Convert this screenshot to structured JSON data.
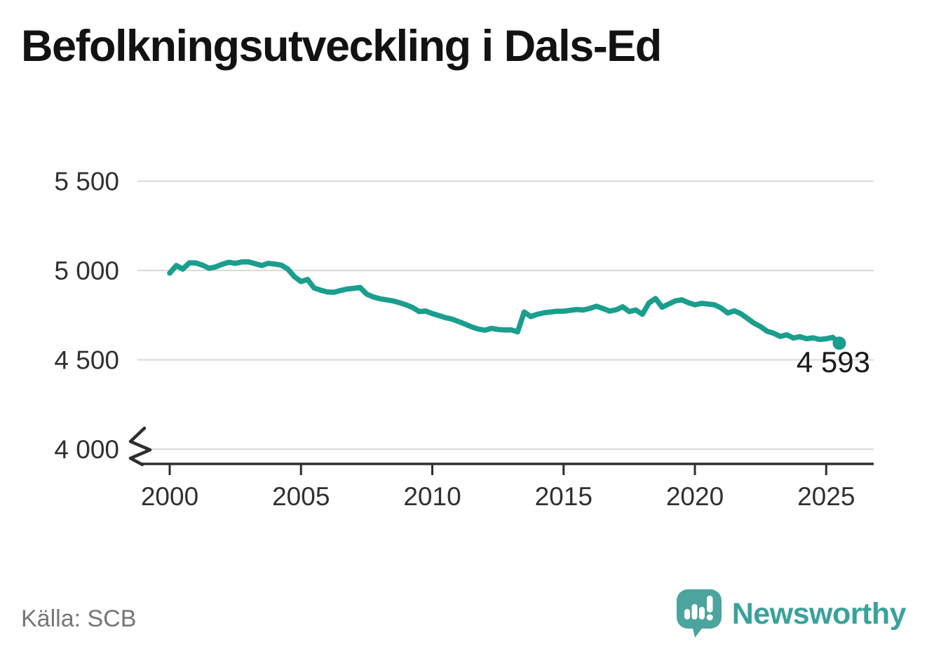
{
  "header": {
    "title": "Befolkningsutveckling i Dals-Ed"
  },
  "footer": {
    "source": "Källa: SCB",
    "brand": "Newsworthy"
  },
  "colors": {
    "line": "#1a9e8e",
    "grid": "#d9d9d9",
    "axis": "#2e2e2e",
    "tick_text": "#303030",
    "muted_text": "#767676",
    "logo_teal": "#4ba49d",
    "wordmark_teal": "#3aa29a"
  },
  "chart_data": {
    "type": "line",
    "title": "Befolkningsutveckling i Dals-Ed",
    "xlabel": "",
    "ylabel": "",
    "grid": "horizontal",
    "legend": "none",
    "y_axis_break": true,
    "ylim_displayed": [
      4000,
      5500
    ],
    "xlim": [
      1998.8,
      2026.9
    ],
    "x_ticks": [
      {
        "value": 2000,
        "label": "2000"
      },
      {
        "value": 2005,
        "label": "2005"
      },
      {
        "value": 2010,
        "label": "2010"
      },
      {
        "value": 2015,
        "label": "2015"
      },
      {
        "value": 2020,
        "label": "2020"
      },
      {
        "value": 2025,
        "label": "2025"
      }
    ],
    "y_ticks": [
      {
        "value": 5500,
        "label": "5 500"
      },
      {
        "value": 5000,
        "label": "5 000"
      },
      {
        "value": 4500,
        "label": "4 500"
      },
      {
        "value": 4000,
        "label": "4 000"
      }
    ],
    "line_color": "#1a9e8e",
    "last_value_label": "4 593",
    "last_point": [
      2025.5,
      4593
    ],
    "series": [
      {
        "name": "Befolkning",
        "points": [
          [
            2000.0,
            4985
          ],
          [
            2000.25,
            5028
          ],
          [
            2000.5,
            5008
          ],
          [
            2000.75,
            5043
          ],
          [
            2001.0,
            5042
          ],
          [
            2001.25,
            5030
          ],
          [
            2001.5,
            5012
          ],
          [
            2001.75,
            5020
          ],
          [
            2002.0,
            5035
          ],
          [
            2002.25,
            5046
          ],
          [
            2002.5,
            5040
          ],
          [
            2002.75,
            5048
          ],
          [
            2003.0,
            5048
          ],
          [
            2003.25,
            5038
          ],
          [
            2003.5,
            5028
          ],
          [
            2003.75,
            5040
          ],
          [
            2004.0,
            5036
          ],
          [
            2004.25,
            5030
          ],
          [
            2004.5,
            5008
          ],
          [
            2004.75,
            4965
          ],
          [
            2005.0,
            4938
          ],
          [
            2005.25,
            4950
          ],
          [
            2005.5,
            4902
          ],
          [
            2005.75,
            4890
          ],
          [
            2006.0,
            4880
          ],
          [
            2006.25,
            4878
          ],
          [
            2006.5,
            4888
          ],
          [
            2006.75,
            4896
          ],
          [
            2007.0,
            4900
          ],
          [
            2007.25,
            4905
          ],
          [
            2007.5,
            4868
          ],
          [
            2007.75,
            4852
          ],
          [
            2008.0,
            4842
          ],
          [
            2008.25,
            4836
          ],
          [
            2008.5,
            4830
          ],
          [
            2008.75,
            4820
          ],
          [
            2009.0,
            4808
          ],
          [
            2009.25,
            4793
          ],
          [
            2009.5,
            4770
          ],
          [
            2009.75,
            4773
          ],
          [
            2010.0,
            4759
          ],
          [
            2010.25,
            4748
          ],
          [
            2010.5,
            4736
          ],
          [
            2010.75,
            4728
          ],
          [
            2011.0,
            4714
          ],
          [
            2011.25,
            4700
          ],
          [
            2011.5,
            4684
          ],
          [
            2011.75,
            4672
          ],
          [
            2012.0,
            4666
          ],
          [
            2012.25,
            4676
          ],
          [
            2012.5,
            4670
          ],
          [
            2012.75,
            4667
          ],
          [
            2013.0,
            4668
          ],
          [
            2013.25,
            4657
          ],
          [
            2013.5,
            4768
          ],
          [
            2013.75,
            4742
          ],
          [
            2014.0,
            4755
          ],
          [
            2014.25,
            4763
          ],
          [
            2014.5,
            4768
          ],
          [
            2014.75,
            4772
          ],
          [
            2015.0,
            4772
          ],
          [
            2015.25,
            4777
          ],
          [
            2015.5,
            4782
          ],
          [
            2015.75,
            4779
          ],
          [
            2016.0,
            4788
          ],
          [
            2016.25,
            4800
          ],
          [
            2016.5,
            4787
          ],
          [
            2016.75,
            4773
          ],
          [
            2017.0,
            4780
          ],
          [
            2017.25,
            4797
          ],
          [
            2017.5,
            4770
          ],
          [
            2017.75,
            4779
          ],
          [
            2018.0,
            4755
          ],
          [
            2018.25,
            4818
          ],
          [
            2018.5,
            4843
          ],
          [
            2018.75,
            4795
          ],
          [
            2019.0,
            4812
          ],
          [
            2019.25,
            4830
          ],
          [
            2019.5,
            4836
          ],
          [
            2019.75,
            4820
          ],
          [
            2020.0,
            4808
          ],
          [
            2020.25,
            4816
          ],
          [
            2020.5,
            4812
          ],
          [
            2020.75,
            4808
          ],
          [
            2021.0,
            4790
          ],
          [
            2021.25,
            4762
          ],
          [
            2021.5,
            4774
          ],
          [
            2021.75,
            4758
          ],
          [
            2022.0,
            4732
          ],
          [
            2022.25,
            4705
          ],
          [
            2022.5,
            4686
          ],
          [
            2022.75,
            4660
          ],
          [
            2023.0,
            4649
          ],
          [
            2023.25,
            4631
          ],
          [
            2023.5,
            4640
          ],
          [
            2023.75,
            4622
          ],
          [
            2024.0,
            4630
          ],
          [
            2024.25,
            4618
          ],
          [
            2024.5,
            4623
          ],
          [
            2024.75,
            4614
          ],
          [
            2025.0,
            4618
          ],
          [
            2025.25,
            4626
          ],
          [
            2025.5,
            4593
          ]
        ]
      }
    ],
    "source": "Källa: SCB"
  }
}
